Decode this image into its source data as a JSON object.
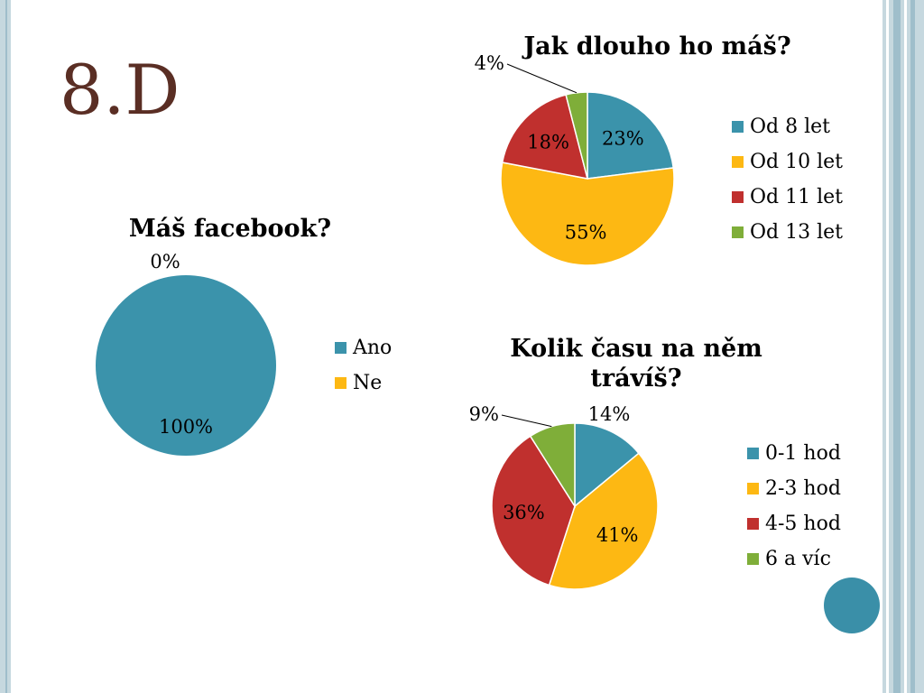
{
  "slide": {
    "title": "8.D"
  },
  "colors": {
    "teal": "#3b93ab",
    "yellow": "#fdb813",
    "red": "#c0302e",
    "green": "#7fae39"
  },
  "chart_data": [
    {
      "id": "facebook",
      "type": "pie",
      "title": "Máš facebook?",
      "categories": [
        "Ano",
        "Ne"
      ],
      "values": [
        100,
        0
      ],
      "data_labels": [
        "100%",
        "0%"
      ],
      "legend": "right"
    },
    {
      "id": "how_long",
      "type": "pie",
      "title": "Jak dlouho ho máš?",
      "categories": [
        "Od 8 let",
        "Od 10 let",
        "Od 11 let",
        "Od 13 let"
      ],
      "values": [
        23,
        55,
        18,
        4
      ],
      "data_labels": [
        "23%",
        "55%",
        "18%",
        "4%"
      ],
      "legend": "right"
    },
    {
      "id": "time_spent",
      "type": "pie",
      "title": "Kolik času na něm trávíš?",
      "categories": [
        "0-1 hod",
        "2-3 hod",
        "4-5 hod",
        "6 a víc"
      ],
      "values": [
        14,
        41,
        36,
        9
      ],
      "data_labels": [
        "14%",
        "41%",
        "36%",
        "9%"
      ],
      "legend": "right"
    }
  ]
}
